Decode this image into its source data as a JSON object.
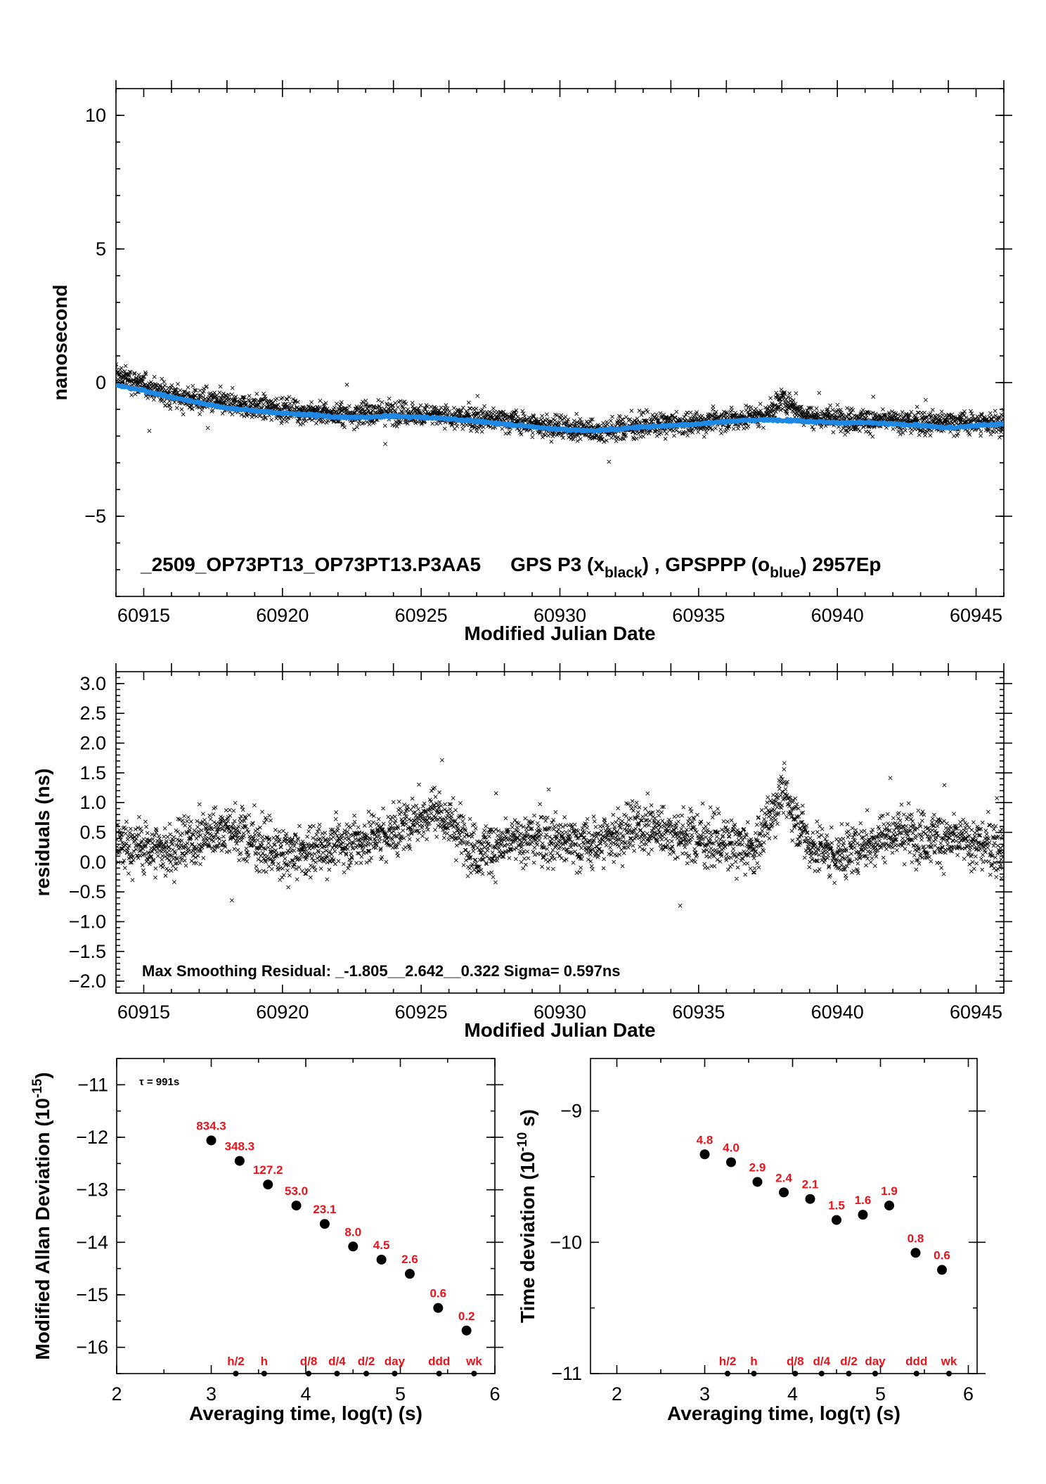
{
  "colors": {
    "black_series": "#000000",
    "blue_series": "#1e88e5",
    "annotation_red": "#e8141b"
  },
  "chart_data": [
    {
      "type": "scatter",
      "panel": "top",
      "xlabel": "Modified Julian Date",
      "ylabel": "nanosecond",
      "xlim": [
        60914,
        60946
      ],
      "ylim": [
        -8,
        11
      ],
      "x_ticks": [
        60915,
        60920,
        60925,
        60930,
        60935,
        60940,
        60945
      ],
      "y_ticks": [
        10,
        5,
        0,
        -5
      ],
      "y_tick_labels": [
        "10",
        "5",
        "0",
        "−5"
      ],
      "annotation": {
        "id_text": "_2509_OP73PT13_OP73PT13.P3AA5",
        "black_prefix": "GPS P3 (x",
        "black_sub": "black",
        "middle": ") ,  GPSPPP (o",
        "blue_sub": "blue",
        "suffix": ")  2957Ep"
      },
      "series": [
        {
          "name": "GPS P3",
          "marker": "x",
          "color": "#000000",
          "trend_points": [
            [
              60914,
              0.3
            ],
            [
              60916,
              -0.5
            ],
            [
              60918,
              -0.8
            ],
            [
              60920,
              -1.0
            ],
            [
              60922,
              -1.2
            ],
            [
              60924,
              -1.1
            ],
            [
              60926,
              -1.3
            ],
            [
              60928,
              -1.4
            ],
            [
              60930,
              -1.7
            ],
            [
              60931.5,
              -1.8
            ],
            [
              60933,
              -1.6
            ],
            [
              60935,
              -1.5
            ],
            [
              60937.5,
              -1.2
            ],
            [
              60938,
              -0.6
            ],
            [
              60939,
              -1.3
            ],
            [
              60941,
              -1.4
            ],
            [
              60943,
              -1.5
            ],
            [
              60946,
              -1.5
            ]
          ],
          "spread": 0.55,
          "count": 2957
        },
        {
          "name": "GPSPPP",
          "marker": "o",
          "color": "#1e88e5",
          "points": [
            [
              60914,
              -0.1
            ],
            [
              60915,
              -0.3
            ],
            [
              60916,
              -0.55
            ],
            [
              60917,
              -0.75
            ],
            [
              60918,
              -0.95
            ],
            [
              60919,
              -1.05
            ],
            [
              60920,
              -1.15
            ],
            [
              60921,
              -1.2
            ],
            [
              60922,
              -1.3
            ],
            [
              60923,
              -1.3
            ],
            [
              60924,
              -1.25
            ],
            [
              60925,
              -1.3
            ],
            [
              60926,
              -1.35
            ],
            [
              60927,
              -1.45
            ],
            [
              60928,
              -1.55
            ],
            [
              60929,
              -1.65
            ],
            [
              60930,
              -1.75
            ],
            [
              60931,
              -1.8
            ],
            [
              60932,
              -1.75
            ],
            [
              60933,
              -1.65
            ],
            [
              60934,
              -1.6
            ],
            [
              60935,
              -1.55
            ],
            [
              60936,
              -1.45
            ],
            [
              60937,
              -1.4
            ],
            [
              60938,
              -1.4
            ],
            [
              60939,
              -1.45
            ],
            [
              60940,
              -1.5
            ],
            [
              60941,
              -1.5
            ],
            [
              60942,
              -1.55
            ],
            [
              60943,
              -1.6
            ],
            [
              60944,
              -1.7
            ],
            [
              60945,
              -1.6
            ],
            [
              60946,
              -1.55
            ]
          ]
        }
      ]
    },
    {
      "type": "scatter",
      "panel": "middle",
      "xlabel": "Modified Julian Date",
      "ylabel": "residuals (ns)",
      "xlim": [
        60914,
        60946
      ],
      "ylim": [
        -2.2,
        3.2
      ],
      "x_ticks": [
        60915,
        60920,
        60925,
        60930,
        60935,
        60940,
        60945
      ],
      "y_ticks": [
        3.0,
        2.5,
        2.0,
        1.5,
        1.0,
        0.5,
        0.0,
        -0.5,
        -1.0,
        -1.5,
        -2.0
      ],
      "y_tick_labels": [
        "3.0",
        "2.5",
        "2.0",
        "1.5",
        "1.0",
        "0.5",
        "0.0",
        "−0.5",
        "−1.0",
        "−1.5",
        "−2.0"
      ],
      "annotation": "Max Smoothing Residual: _-1.805__2.642__0.322  Sigma= 0.597ns",
      "series": [
        {
          "name": "residuals",
          "marker": "x",
          "color": "#000000",
          "trend_points": [
            [
              60914,
              0.3
            ],
            [
              60916,
              0.2
            ],
            [
              60918,
              0.6
            ],
            [
              60920,
              0.1
            ],
            [
              60922,
              0.3
            ],
            [
              60924,
              0.5
            ],
            [
              60925.5,
              0.9
            ],
            [
              60927,
              0.2
            ],
            [
              60929,
              0.4
            ],
            [
              60931,
              0.3
            ],
            [
              60933,
              0.6
            ],
            [
              60935,
              0.4
            ],
            [
              60937,
              0.2
            ],
            [
              60938,
              1.2
            ],
            [
              60939,
              0.3
            ],
            [
              60940,
              0.1
            ],
            [
              60942,
              0.5
            ],
            [
              60944,
              0.4
            ],
            [
              60946,
              0.2
            ]
          ],
          "spread": 0.55,
          "count": 2957
        }
      ]
    },
    {
      "type": "scatter",
      "panel": "bottom-left",
      "xlabel": "Averaging time, log(τ) (s)",
      "ylabel_main": "Modified Allan Deviation (10",
      "ylabel_sup": "-15",
      "ylabel_end": ")",
      "xlim": [
        2,
        6
      ],
      "ylim": [
        -16.5,
        -10.5
      ],
      "x_ticks": [
        2,
        3,
        4,
        5,
        6
      ],
      "y_ticks": [
        -11,
        -12,
        -13,
        -14,
        -15,
        -16
      ],
      "y_tick_labels": [
        "−11",
        "−12",
        "−13",
        "−14",
        "−15",
        "−16"
      ],
      "tau_note": "τ = 991s",
      "points": [
        {
          "x": 3.0,
          "y": -12.06,
          "label": "834.3"
        },
        {
          "x": 3.3,
          "y": -12.45,
          "label": "348.3"
        },
        {
          "x": 3.6,
          "y": -12.9,
          "label": "127.2"
        },
        {
          "x": 3.9,
          "y": -13.3,
          "label": "53.0"
        },
        {
          "x": 4.2,
          "y": -13.65,
          "label": "23.1"
        },
        {
          "x": 4.5,
          "y": -14.08,
          "label": "8.0"
        },
        {
          "x": 4.8,
          "y": -14.33,
          "label": "4.5"
        },
        {
          "x": 5.1,
          "y": -14.6,
          "label": "2.6"
        },
        {
          "x": 5.4,
          "y": -15.25,
          "label": "0.6"
        },
        {
          "x": 5.7,
          "y": -15.68,
          "label": "0.2"
        }
      ],
      "marker_labels": [
        {
          "x": 3.26,
          "label": "h/2"
        },
        {
          "x": 3.56,
          "label": "h"
        },
        {
          "x": 4.03,
          "label": "d/8"
        },
        {
          "x": 4.33,
          "label": "d/4"
        },
        {
          "x": 4.64,
          "label": "d/2"
        },
        {
          "x": 4.94,
          "label": "day"
        },
        {
          "x": 5.41,
          "label": "ddd"
        },
        {
          "x": 5.78,
          "label": "wk"
        }
      ]
    },
    {
      "type": "scatter",
      "panel": "bottom-right",
      "xlabel": "Averaging time, log(τ) (s)",
      "ylabel_main": "Time deviation (10",
      "ylabel_sup": "-10",
      "ylabel_end": " s)",
      "xlim": [
        1.7,
        6.1
      ],
      "ylim": [
        -11,
        -8.6
      ],
      "x_ticks": [
        2,
        3,
        4,
        5,
        6
      ],
      "y_ticks": [
        -9,
        -10,
        -11
      ],
      "y_tick_labels": [
        "−9",
        "−10",
        "−11"
      ],
      "points": [
        {
          "x": 3.0,
          "y": -9.33,
          "label": "4.8"
        },
        {
          "x": 3.3,
          "y": -9.39,
          "label": "4.0"
        },
        {
          "x": 3.6,
          "y": -9.54,
          "label": "2.9"
        },
        {
          "x": 3.9,
          "y": -9.62,
          "label": "2.4"
        },
        {
          "x": 4.2,
          "y": -9.67,
          "label": "2.1"
        },
        {
          "x": 4.5,
          "y": -9.83,
          "label": "1.5"
        },
        {
          "x": 4.8,
          "y": -9.79,
          "label": "1.6"
        },
        {
          "x": 5.1,
          "y": -9.72,
          "label": "1.9"
        },
        {
          "x": 5.4,
          "y": -10.08,
          "label": "0.8"
        },
        {
          "x": 5.7,
          "y": -10.21,
          "label": "0.6"
        }
      ],
      "marker_labels": [
        {
          "x": 3.26,
          "label": "h/2"
        },
        {
          "x": 3.56,
          "label": "h"
        },
        {
          "x": 4.03,
          "label": "d/8"
        },
        {
          "x": 4.33,
          "label": "d/4"
        },
        {
          "x": 4.64,
          "label": "d/2"
        },
        {
          "x": 4.94,
          "label": "day"
        },
        {
          "x": 5.41,
          "label": "ddd"
        },
        {
          "x": 5.78,
          "label": "wk"
        }
      ]
    }
  ]
}
